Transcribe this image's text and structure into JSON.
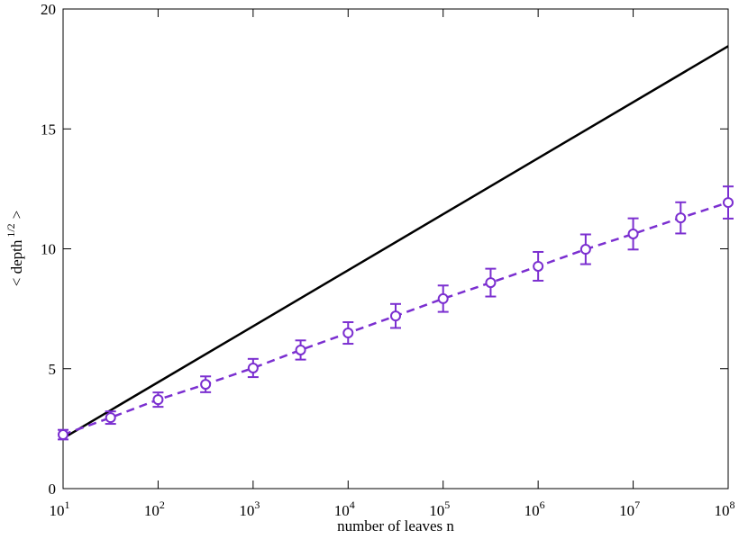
{
  "chart_data": {
    "type": "line",
    "xlabel": "number of leaves n",
    "ylabel": {
      "text": "< depth",
      "superscript": "1/2",
      "suffix": ">"
    },
    "xscale": "log",
    "xlim": [
      10,
      100000000
    ],
    "ylim": [
      0,
      20
    ],
    "xticks": [
      {
        "value": 10,
        "label": "10",
        "exponent": "1"
      },
      {
        "value": 100,
        "label": "10",
        "exponent": "2"
      },
      {
        "value": 1000,
        "label": "10",
        "exponent": "3"
      },
      {
        "value": 10000,
        "label": "10",
        "exponent": "4"
      },
      {
        "value": 100000,
        "label": "10",
        "exponent": "5"
      },
      {
        "value": 1000000,
        "label": "10",
        "exponent": "6"
      },
      {
        "value": 10000000,
        "label": "10",
        "exponent": "7"
      },
      {
        "value": 100000000,
        "label": "10",
        "exponent": "8"
      }
    ],
    "yticks": [
      0,
      5,
      10,
      15,
      20
    ],
    "series": [
      {
        "color": "#000000",
        "style": "solid",
        "x": [
          10,
          100000000
        ],
        "values": [
          2.1,
          18.45
        ]
      },
      {
        "color": "#7b2fd0",
        "style": "dashed",
        "marker": "circle",
        "x": [
          10,
          31.62,
          100,
          316.2,
          1000,
          3162,
          10000,
          31623,
          100000,
          316228,
          1000000,
          3162278,
          10000000,
          31622777,
          100000000
        ],
        "values": [
          2.25,
          2.96,
          3.71,
          4.35,
          5.03,
          5.78,
          6.49,
          7.2,
          7.92,
          8.59,
          9.27,
          9.98,
          10.62,
          11.29,
          11.93
        ],
        "errors": [
          0.2,
          0.26,
          0.3,
          0.33,
          0.38,
          0.4,
          0.45,
          0.5,
          0.55,
          0.58,
          0.6,
          0.62,
          0.65,
          0.65,
          0.67
        ]
      }
    ]
  }
}
